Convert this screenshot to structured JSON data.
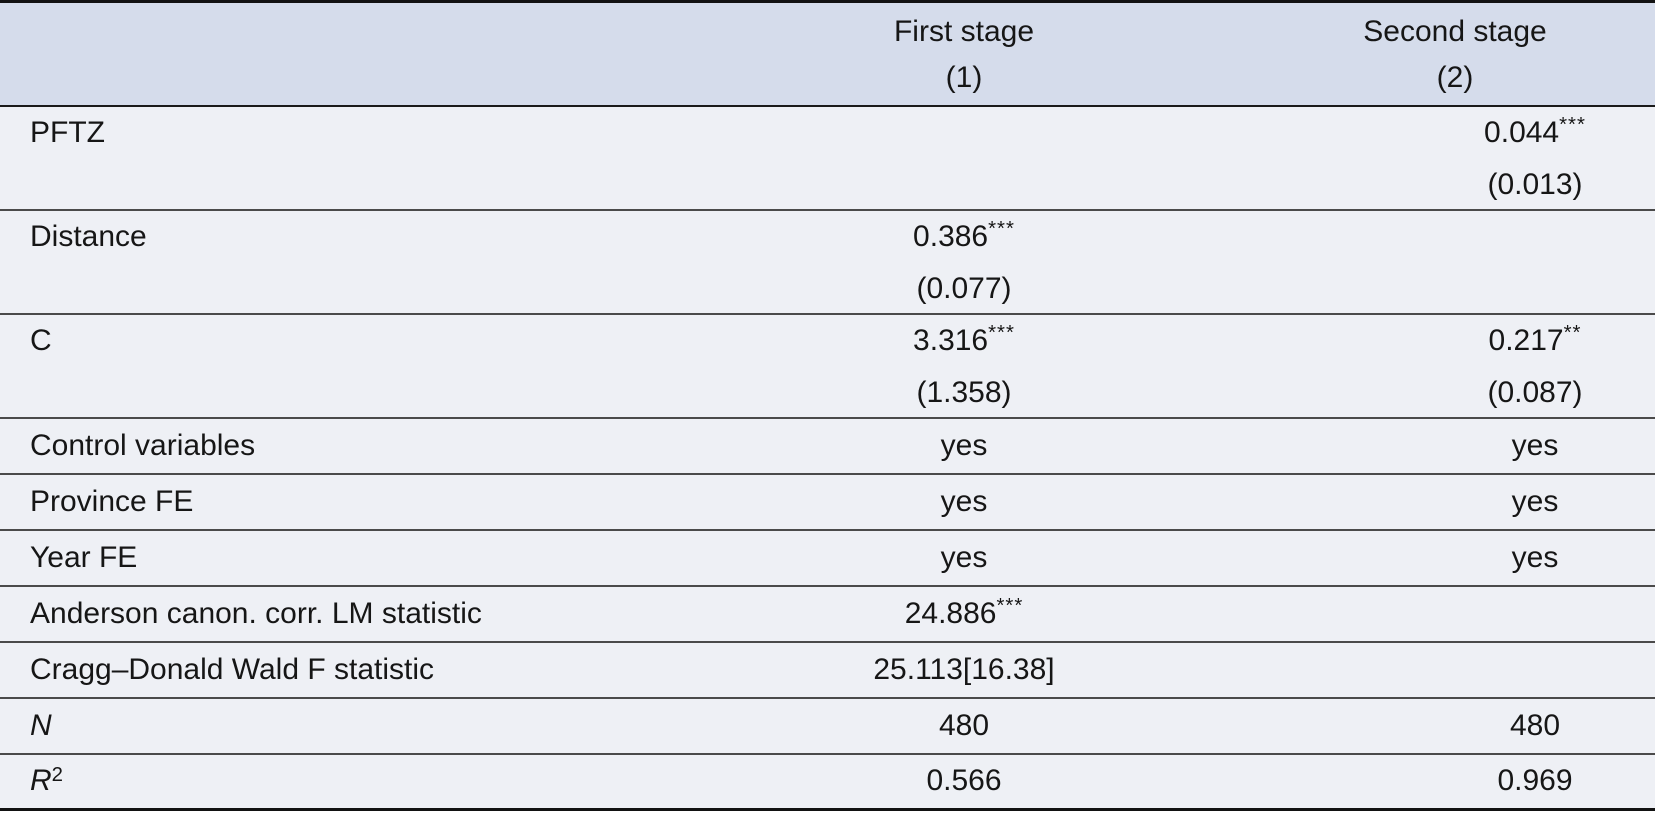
{
  "header": {
    "col_first": {
      "title": "First stage",
      "number": "(1)"
    },
    "col_second": {
      "title": "Second stage",
      "number": "(2)"
    }
  },
  "rows": [
    {
      "label": "PFTZ",
      "c1": {
        "value": "",
        "stars": "",
        "se": ""
      },
      "c2": {
        "value": "0.044",
        "stars": "***",
        "se": "(0.013)"
      }
    },
    {
      "label": "Distance",
      "c1": {
        "value": "0.386",
        "stars": "***",
        "se": "(0.077)"
      },
      "c2": {
        "value": "",
        "stars": "",
        "se": ""
      }
    },
    {
      "label": "C",
      "c1": {
        "value": "3.316",
        "stars": "***",
        "se": "(1.358)"
      },
      "c2": {
        "value": "0.217",
        "stars": "**",
        "se": "(0.087)"
      }
    },
    {
      "label": "Control variables",
      "c1": {
        "value": "yes"
      },
      "c2": {
        "value": "yes"
      }
    },
    {
      "label": "Province FE",
      "c1": {
        "value": "yes"
      },
      "c2": {
        "value": "yes"
      }
    },
    {
      "label": "Year FE",
      "c1": {
        "value": "yes"
      },
      "c2": {
        "value": "yes"
      }
    },
    {
      "label": "Anderson canon. corr. LM statistic",
      "c1": {
        "value": "24.886",
        "stars": "***"
      },
      "c2": {
        "value": ""
      }
    },
    {
      "label": "Cragg–Donald Wald F statistic",
      "c1": {
        "value": "25.113[16.38]"
      },
      "c2": {
        "value": ""
      }
    },
    {
      "label": "N",
      "c1": {
        "value": "480"
      },
      "c2": {
        "value": "480"
      }
    },
    {
      "label": "R",
      "label_sup": "2",
      "c1": {
        "value": "0.566"
      },
      "c2": {
        "value": "0.969"
      }
    }
  ],
  "colors": {
    "header_bg": "#d5dceb",
    "body_bg": "#eef0f5",
    "border_heavy": "#121212",
    "border_light": "#4a4a4a"
  },
  "chart_data": {
    "type": "table",
    "title": "IV regression results: first and second stage",
    "columns": [
      "",
      "First stage (1)",
      "Second stage (2)"
    ],
    "cells": [
      [
        "PFTZ",
        "",
        "0.044*** (0.013)"
      ],
      [
        "Distance",
        "0.386*** (0.077)",
        ""
      ],
      [
        "C",
        "3.316*** (1.358)",
        "0.217** (0.087)"
      ],
      [
        "Control variables",
        "yes",
        "yes"
      ],
      [
        "Province FE",
        "yes",
        "yes"
      ],
      [
        "Year FE",
        "yes",
        "yes"
      ],
      [
        "Anderson canon. corr. LM statistic",
        "24.886***",
        ""
      ],
      [
        "Cragg–Donald Wald F statistic",
        "25.113[16.38]",
        ""
      ],
      [
        "N",
        "480",
        "480"
      ],
      [
        "R2",
        "0.566",
        "0.969"
      ]
    ]
  }
}
